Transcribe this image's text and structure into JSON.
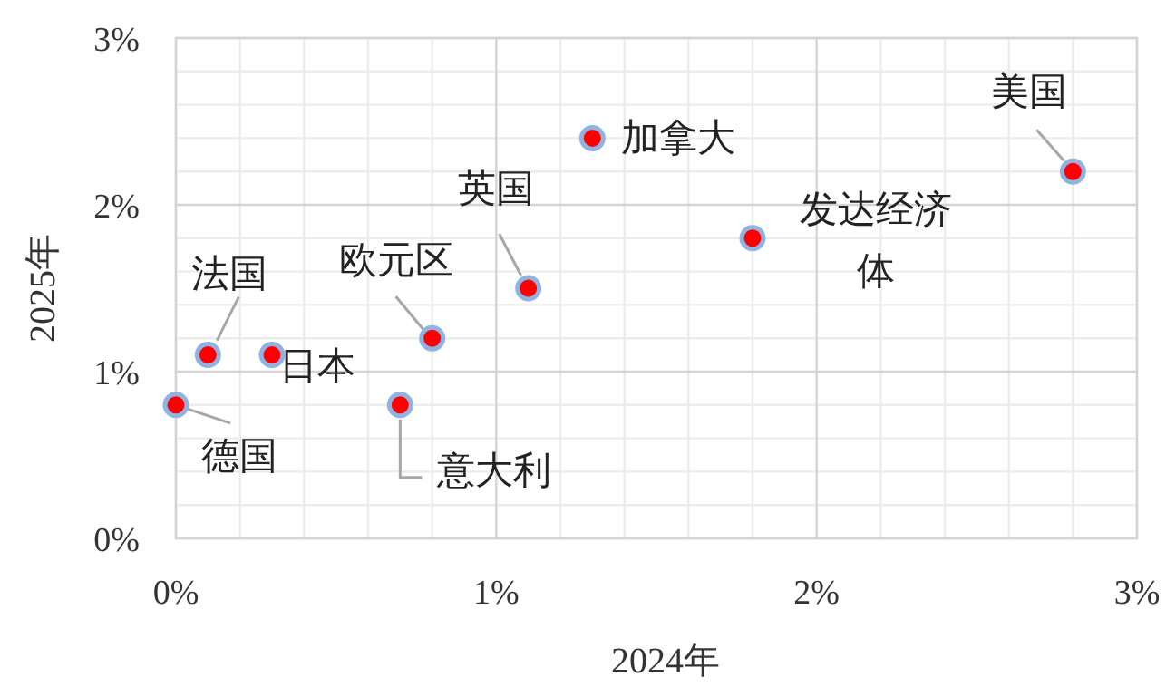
{
  "chart_data": {
    "type": "scatter",
    "xlabel": "2024年",
    "ylabel": "2025年",
    "x": [
      0,
      0.1,
      0.3,
      0.7,
      0.8,
      1.1,
      1.3,
      1.8,
      2.8
    ],
    "series": [
      {
        "color": "#ff0000",
        "values": [
          0.8,
          1.1,
          1.1,
          0.8,
          1.2,
          1.5,
          2.4,
          1.8,
          2.2
        ]
      }
    ],
    "annotations": [
      {
        "text": "德国",
        "x": 0,
        "y": 0.8
      },
      {
        "text": "法国",
        "x": 0.1,
        "y": 1.1
      },
      {
        "text": "日本",
        "x": 0.3,
        "y": 1.1
      },
      {
        "text": "意大利",
        "x": 0.7,
        "y": 0.8
      },
      {
        "text": "欧元区",
        "x": 0.8,
        "y": 1.2
      },
      {
        "text": "英国",
        "x": 1.1,
        "y": 1.5
      },
      {
        "text": "加拿大",
        "x": 1.3,
        "y": 2.4
      },
      {
        "text": "发达经济体",
        "x": 1.8,
        "y": 1.8
      },
      {
        "text": "美国",
        "x": 2.8,
        "y": 2.2
      }
    ],
    "xlim": [
      0,
      3
    ],
    "ylim": [
      0,
      3
    ],
    "xticks": [
      {
        "value": 0,
        "label": "0%"
      },
      {
        "value": 1,
        "label": "1%"
      },
      {
        "value": 2,
        "label": "2%"
      },
      {
        "value": 3,
        "label": "3%"
      }
    ],
    "yticks": [
      {
        "value": 0,
        "label": "0%"
      },
      {
        "value": 1,
        "label": "1%"
      },
      {
        "value": 2,
        "label": "2%"
      },
      {
        "value": 3,
        "label": "3%"
      }
    ],
    "grid": true,
    "marker": "circle"
  }
}
